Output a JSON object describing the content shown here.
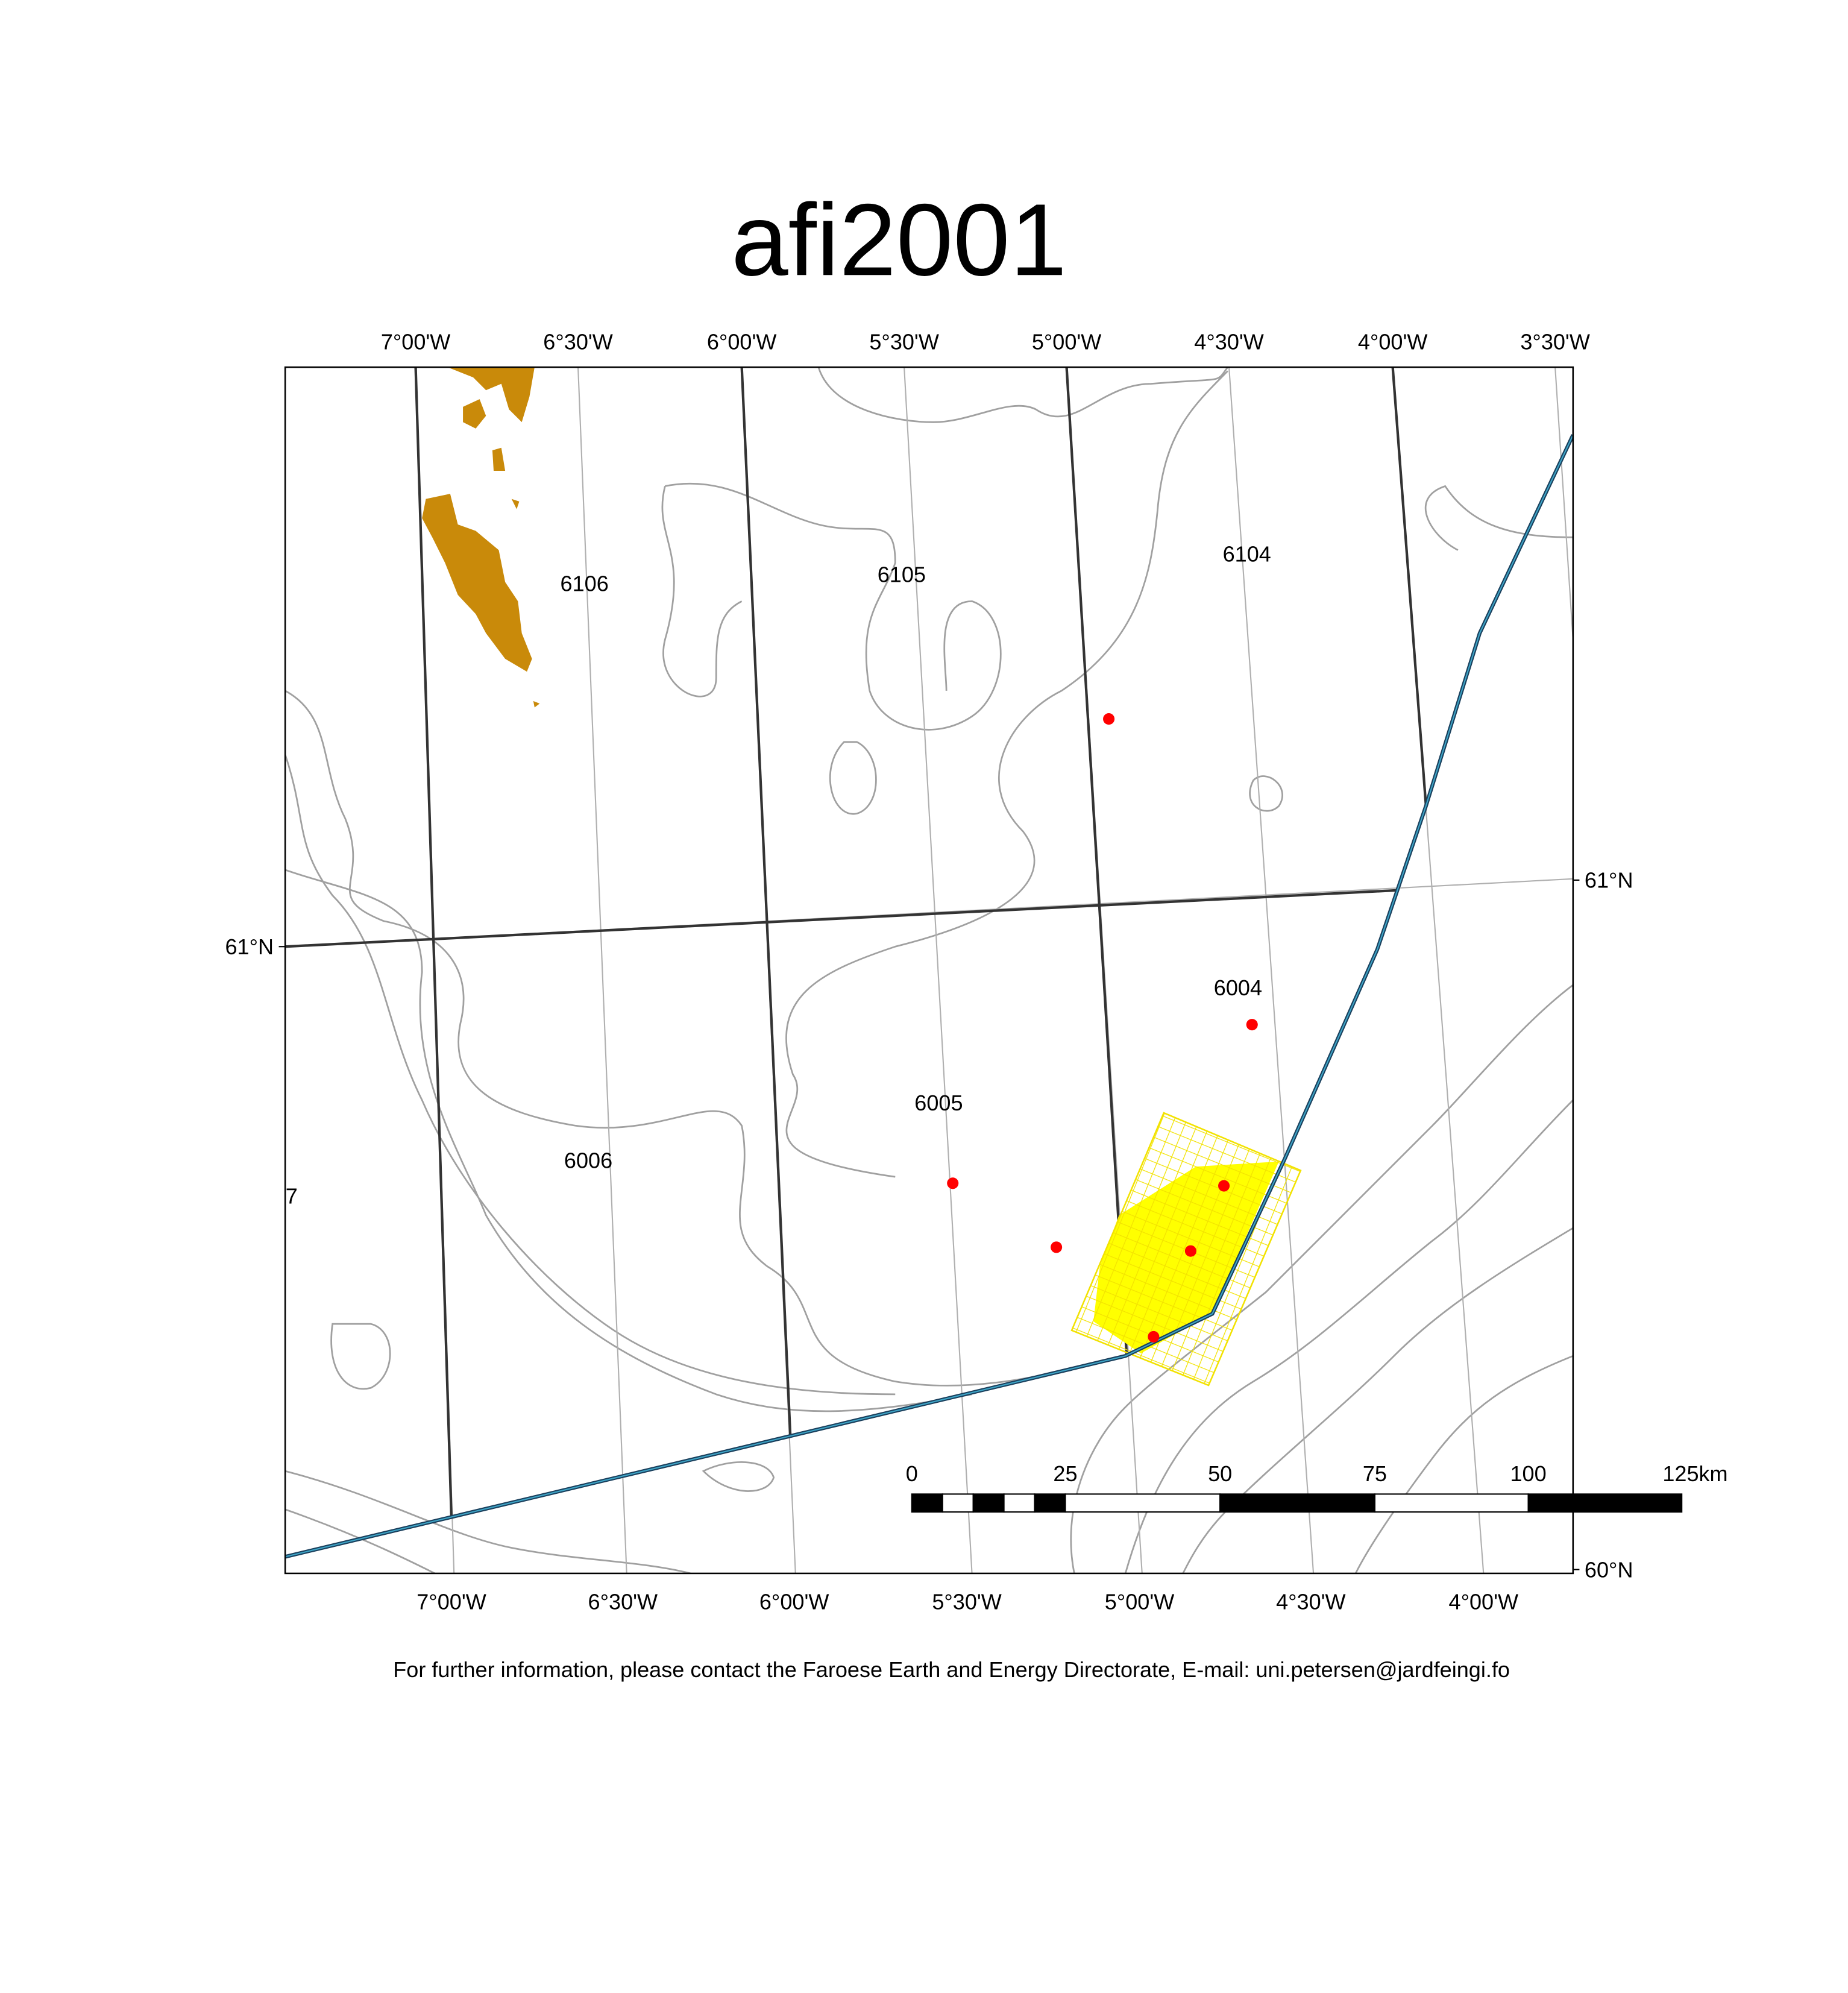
{
  "title": "afi2001",
  "top_labels": [
    "7°00'W",
    "6°30'W",
    "6°00'W",
    "5°30'W",
    "5°00'W",
    "4°30'W",
    "4°00'W",
    "3°30'W"
  ],
  "bottom_labels": [
    "7°00'W",
    "6°30'W",
    "6°00'W",
    "5°30'W",
    "5°00'W",
    "4°30'W",
    "4°00'W"
  ],
  "lat_labels": [
    "61°N",
    "61°N",
    "60°N"
  ],
  "blocks": [
    "6106",
    "6105",
    "6104",
    "6004",
    "6005",
    "6006",
    "7"
  ],
  "scale_bar": [
    "0",
    "25",
    "50",
    "75",
    "100",
    "125km"
  ],
  "footer": "For further information, please contact the Faroese Earth and Energy Directorate, E-mail: uni.petersen@jardfeingi.fo"
}
